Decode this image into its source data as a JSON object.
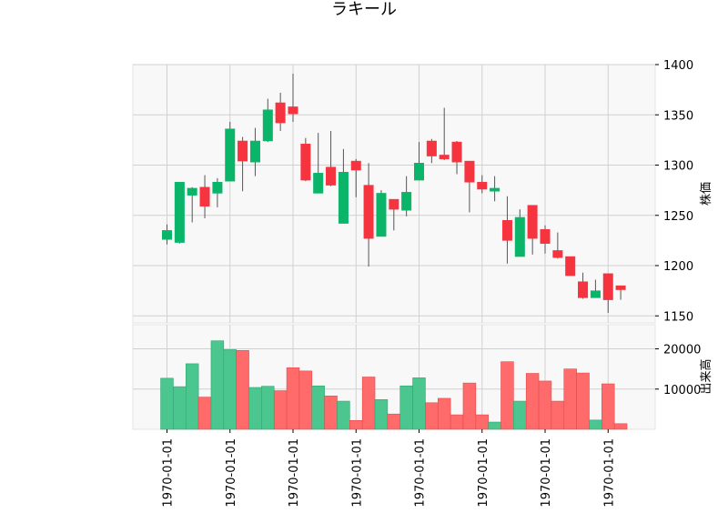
{
  "chart_data": {
    "type": "candlestick",
    "title": "ラキール",
    "x_tick_labels": [
      "1970-01-01",
      "1970-01-01",
      "1970-01-01",
      "1970-01-01",
      "1970-01-01",
      "1970-01-01",
      "1970-01-01",
      "1970-01-01"
    ],
    "price_panel": {
      "ylabel": "株価",
      "ylim": [
        1143,
        1400
      ],
      "yticks": [
        1150,
        1200,
        1250,
        1300,
        1350,
        1400
      ]
    },
    "volume_panel": {
      "ylabel": "出来高",
      "ylim": [
        0,
        26000
      ],
      "yticks": [
        10000,
        20000
      ],
      "ytick_labels": [
        "10000",
        "20000"
      ]
    },
    "colors": {
      "up": "#0ab56a",
      "down": "#f5343f",
      "wick": "#555555",
      "grid": "#d0d0d0",
      "panel_bg": "#f8f8f8"
    },
    "candles": [
      {
        "o": 1226,
        "h": 1241,
        "l": 1221,
        "c": 1235,
        "v": 12700
      },
      {
        "o": 1223,
        "h": 1283,
        "l": 1222,
        "c": 1283,
        "v": 10600
      },
      {
        "o": 1270,
        "h": 1278,
        "l": 1243,
        "c": 1277,
        "v": 16300
      },
      {
        "o": 1278,
        "h": 1290,
        "l": 1247,
        "c": 1259,
        "v": 8000
      },
      {
        "o": 1272,
        "h": 1287,
        "l": 1258,
        "c": 1283,
        "v": 22000
      },
      {
        "o": 1284,
        "h": 1343,
        "l": 1284,
        "c": 1336,
        "v": 19800
      },
      {
        "o": 1324,
        "h": 1328,
        "l": 1274,
        "c": 1304,
        "v": 19600
      },
      {
        "o": 1303,
        "h": 1337,
        "l": 1289,
        "c": 1324,
        "v": 10400
      },
      {
        "o": 1324,
        "h": 1366,
        "l": 1323,
        "c": 1355,
        "v": 10700
      },
      {
        "o": 1362,
        "h": 1372,
        "l": 1334,
        "c": 1342,
        "v": 9600
      },
      {
        "o": 1358,
        "h": 1391,
        "l": 1343,
        "c": 1351,
        "v": 15300
      },
      {
        "o": 1321,
        "h": 1327,
        "l": 1284,
        "c": 1285,
        "v": 14500
      },
      {
        "o": 1272,
        "h": 1332,
        "l": 1272,
        "c": 1292,
        "v": 10800
      },
      {
        "o": 1298,
        "h": 1334,
        "l": 1279,
        "c": 1280,
        "v": 8300
      },
      {
        "o": 1242,
        "h": 1316,
        "l": 1242,
        "c": 1293,
        "v": 7000
      },
      {
        "o": 1304,
        "h": 1306,
        "l": 1268,
        "c": 1295,
        "v": 2200
      },
      {
        "o": 1280,
        "h": 1302,
        "l": 1199,
        "c": 1227,
        "v": 13000
      },
      {
        "o": 1229,
        "h": 1275,
        "l": 1229,
        "c": 1272,
        "v": 7400
      },
      {
        "o": 1266,
        "h": 1266,
        "l": 1235,
        "c": 1256,
        "v": 3800
      },
      {
        "o": 1255,
        "h": 1289,
        "l": 1249,
        "c": 1273,
        "v": 10800
      },
      {
        "o": 1285,
        "h": 1323,
        "l": 1285,
        "c": 1302,
        "v": 12800
      },
      {
        "o": 1324,
        "h": 1326,
        "l": 1302,
        "c": 1309,
        "v": 6600
      },
      {
        "o": 1310,
        "h": 1357,
        "l": 1305,
        "c": 1306,
        "v": 7700
      },
      {
        "o": 1323,
        "h": 1324,
        "l": 1291,
        "c": 1303,
        "v": 3600
      },
      {
        "o": 1304,
        "h": 1304,
        "l": 1253,
        "c": 1283,
        "v": 11500
      },
      {
        "o": 1283,
        "h": 1290,
        "l": 1272,
        "c": 1276,
        "v": 3600
      },
      {
        "o": 1274,
        "h": 1289,
        "l": 1264,
        "c": 1277,
        "v": 1800
      },
      {
        "o": 1245,
        "h": 1269,
        "l": 1202,
        "c": 1225,
        "v": 16800
      },
      {
        "o": 1209,
        "h": 1256,
        "l": 1209,
        "c": 1248,
        "v": 7000
      },
      {
        "o": 1260,
        "h": 1260,
        "l": 1211,
        "c": 1227,
        "v": 13900
      },
      {
        "o": 1236,
        "h": 1240,
        "l": 1212,
        "c": 1222,
        "v": 12000
      },
      {
        "o": 1215,
        "h": 1233,
        "l": 1207,
        "c": 1208,
        "v": 7000
      },
      {
        "o": 1209,
        "h": 1209,
        "l": 1190,
        "c": 1190,
        "v": 15000
      },
      {
        "o": 1184,
        "h": 1193,
        "l": 1167,
        "c": 1168,
        "v": 14000
      },
      {
        "o": 1168,
        "h": 1186,
        "l": 1168,
        "c": 1175,
        "v": 2300
      },
      {
        "o": 1192,
        "h": 1192,
        "l": 1153,
        "c": 1166,
        "v": 11300
      },
      {
        "o": 1180,
        "h": 1180,
        "l": 1166,
        "c": 1176,
        "v": 1400
      }
    ]
  }
}
